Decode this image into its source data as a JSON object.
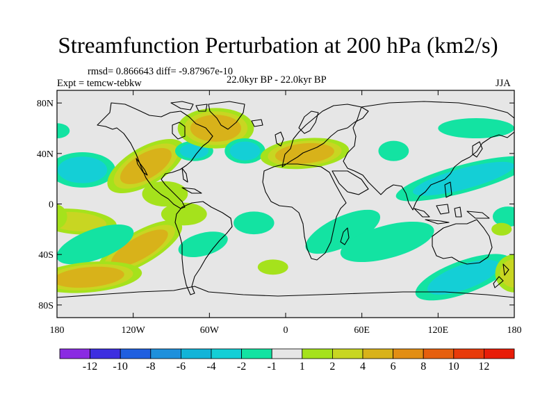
{
  "title": "Streamfunction Perturbation at 200 hPa (km2/s)",
  "stats_line": "rmsd= 0.866643 diff= -9.87967e-10",
  "experiment_label": "Expt = temcw-tebkw",
  "period_label": "22.0kyr BP - 22.0kyr BP",
  "season_label": "JJA",
  "map": {
    "projection": "cylindrical-equidistant",
    "lon_range": [
      -180,
      180
    ],
    "lat_range": [
      -90,
      90
    ],
    "ocean_color": "#e6e6e6",
    "coast_color": "#000000"
  },
  "lat_ticks": [
    {
      "value": 80,
      "label": "80N"
    },
    {
      "value": 40,
      "label": "40N"
    },
    {
      "value": 0,
      "label": "0"
    },
    {
      "value": -40,
      "label": "40S"
    },
    {
      "value": -80,
      "label": "80S"
    }
  ],
  "lon_ticks": [
    {
      "value": -180,
      "label": "180"
    },
    {
      "value": -120,
      "label": "120W"
    },
    {
      "value": -60,
      "label": "60W"
    },
    {
      "value": 0,
      "label": "0"
    },
    {
      "value": 60,
      "label": "60E"
    },
    {
      "value": 120,
      "label": "120E"
    },
    {
      "value": 180,
      "label": "180"
    }
  ],
  "colorbar": {
    "colors": [
      "#8a2be2",
      "#3d2ee0",
      "#1f5fe0",
      "#1e90dc",
      "#12b4d8",
      "#14cfd6",
      "#13e3a2",
      "#e6e6e6",
      "#a5e21c",
      "#c8d622",
      "#d8b21a",
      "#e28e14",
      "#e65f0e",
      "#e83a0a",
      "#e81c08"
    ],
    "boundaries": [
      -12,
      -10,
      -8,
      -6,
      -4,
      -2,
      -1,
      1,
      2,
      4,
      6,
      8,
      10,
      12
    ],
    "labels": [
      "-12",
      "-10",
      "-8",
      "-6",
      "-4",
      "-2",
      "-1",
      "1",
      "2",
      "4",
      "6",
      "8",
      "10",
      "12"
    ]
  },
  "anomalies": [
    {
      "lon": -160,
      "lat": 27,
      "rx": 26,
      "ry": 14,
      "rot": 0,
      "levels": [
        -1,
        -2
      ]
    },
    {
      "lon": -180,
      "lat": 58,
      "rx": 10,
      "ry": 6,
      "rot": 0,
      "levels": [
        -1
      ]
    },
    {
      "lon": -110,
      "lat": 30,
      "rx": 34,
      "ry": 15,
      "rot": -30,
      "levels": [
        1,
        2,
        4
      ]
    },
    {
      "lon": -95,
      "lat": 8,
      "rx": 18,
      "ry": 10,
      "rot": 0,
      "levels": [
        1
      ]
    },
    {
      "lon": -165,
      "lat": -14,
      "rx": 32,
      "ry": 10,
      "rot": 5,
      "levels": [
        1,
        2
      ]
    },
    {
      "lon": -115,
      "lat": -35,
      "rx": 38,
      "ry": 13,
      "rot": -30,
      "levels": [
        1,
        2,
        4
      ]
    },
    {
      "lon": -150,
      "lat": -32,
      "rx": 32,
      "ry": 12,
      "rot": -20,
      "levels": [
        -1
      ]
    },
    {
      "lon": -155,
      "lat": -58,
      "rx": 42,
      "ry": 12,
      "rot": -5,
      "levels": [
        1,
        2,
        4
      ]
    },
    {
      "lon": -72,
      "lat": 42,
      "rx": 15,
      "ry": 8,
      "rot": 0,
      "levels": [
        -1,
        -2
      ]
    },
    {
      "lon": -80,
      "lat": -8,
      "rx": 18,
      "ry": 9,
      "rot": 0,
      "levels": [
        1
      ]
    },
    {
      "lon": -65,
      "lat": -32,
      "rx": 20,
      "ry": 9,
      "rot": -15,
      "levels": [
        -1
      ]
    },
    {
      "lon": -55,
      "lat": 60,
      "rx": 30,
      "ry": 16,
      "rot": 0,
      "levels": [
        1,
        2,
        4
      ]
    },
    {
      "lon": -32,
      "lat": 42,
      "rx": 16,
      "ry": 10,
      "rot": 0,
      "levels": [
        -1,
        -2
      ]
    },
    {
      "lon": -25,
      "lat": -15,
      "rx": 16,
      "ry": 9,
      "rot": 0,
      "levels": [
        -1
      ]
    },
    {
      "lon": 15,
      "lat": 40,
      "rx": 35,
      "ry": 12,
      "rot": -5,
      "levels": [
        1,
        2,
        4
      ]
    },
    {
      "lon": 45,
      "lat": -22,
      "rx": 32,
      "ry": 12,
      "rot": -25,
      "levels": [
        -1
      ]
    },
    {
      "lon": 80,
      "lat": -30,
      "rx": 38,
      "ry": 13,
      "rot": -15,
      "levels": [
        -1
      ]
    },
    {
      "lon": 140,
      "lat": -58,
      "rx": 40,
      "ry": 13,
      "rot": -20,
      "levels": [
        -1,
        -2
      ]
    },
    {
      "lon": 140,
      "lat": 20,
      "rx": 55,
      "ry": 11,
      "rot": -15,
      "levels": [
        -1,
        -2
      ]
    },
    {
      "lon": 150,
      "lat": 60,
      "rx": 30,
      "ry": 8,
      "rot": 0,
      "levels": [
        -1
      ]
    },
    {
      "lon": 180,
      "lat": -55,
      "rx": 15,
      "ry": 15,
      "rot": 0,
      "levels": [
        1,
        2
      ]
    },
    {
      "lon": 175,
      "lat": -10,
      "rx": 12,
      "ry": 8,
      "rot": 0,
      "levels": [
        -1
      ]
    },
    {
      "lon": -182,
      "lat": -10,
      "rx": 10,
      "ry": 10,
      "rot": 0,
      "levels": [
        1
      ]
    },
    {
      "lon": 170,
      "lat": -20,
      "rx": 8,
      "ry": 5,
      "rot": 0,
      "levels": [
        1
      ]
    },
    {
      "lon": 85,
      "lat": 42,
      "rx": 12,
      "ry": 8,
      "rot": 0,
      "levels": [
        -1
      ]
    },
    {
      "lon": -10,
      "lat": -50,
      "rx": 12,
      "ry": 6,
      "rot": 0,
      "levels": [
        1
      ]
    }
  ]
}
